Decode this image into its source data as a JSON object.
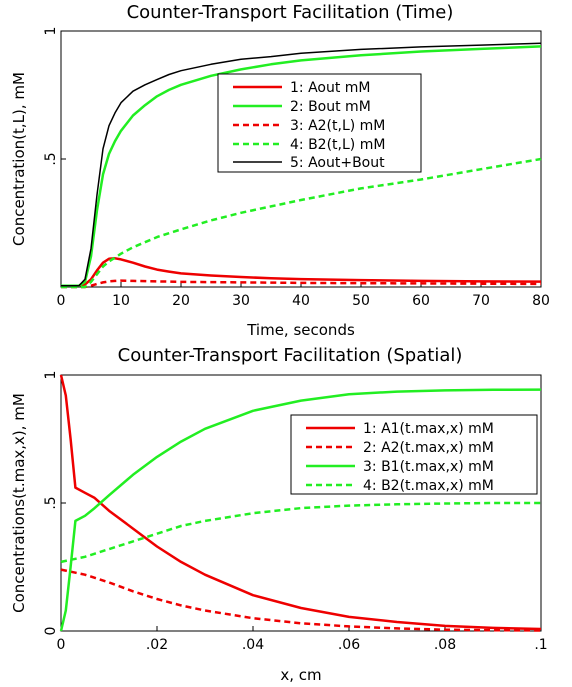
{
  "colors": {
    "red": "#ee0000",
    "green": "#22ee22",
    "black": "#000000"
  },
  "chart_data": [
    {
      "type": "line",
      "title": "Counter-Transport Facilitation (Time)",
      "xlabel": "Time, seconds",
      "ylabel": "Concentration(t,L), mM",
      "xlim": [
        0,
        80
      ],
      "ylim": [
        0,
        1
      ],
      "xticks": [
        {
          "v": 0,
          "label": "0"
        },
        {
          "v": 10,
          "label": "10"
        },
        {
          "v": 20,
          "label": "20"
        },
        {
          "v": 30,
          "label": "30"
        },
        {
          "v": 40,
          "label": "40"
        },
        {
          "v": 50,
          "label": "50"
        },
        {
          "v": 60,
          "label": "60"
        },
        {
          "v": 70,
          "label": "70"
        },
        {
          "v": 80,
          "label": "80"
        }
      ],
      "yticks": [
        {
          "v": 0.5,
          "label": ".5"
        },
        {
          "v": 1,
          "label": "1"
        }
      ],
      "legend_position": "top-right",
      "series": [
        {
          "name": "1: Aout mM",
          "color": "#ee0000",
          "dash": false,
          "x": [
            0,
            3,
            4,
            5,
            6,
            7,
            8,
            9,
            10,
            12,
            14,
            16,
            18,
            20,
            25,
            30,
            35,
            40,
            50,
            60,
            70,
            80
          ],
          "y": [
            0.005,
            0.005,
            0.01,
            0.03,
            0.065,
            0.095,
            0.11,
            0.112,
            0.108,
            0.095,
            0.08,
            0.068,
            0.06,
            0.053,
            0.045,
            0.039,
            0.034,
            0.031,
            0.027,
            0.024,
            0.022,
            0.021
          ]
        },
        {
          "name": "2: Bout mM",
          "color": "#22ee22",
          "dash": false,
          "x": [
            0,
            3,
            4,
            5,
            6,
            7,
            8,
            9,
            10,
            12,
            14,
            16,
            18,
            20,
            25,
            30,
            35,
            40,
            50,
            60,
            70,
            80
          ],
          "y": [
            0.005,
            0.005,
            0.02,
            0.12,
            0.3,
            0.44,
            0.52,
            0.57,
            0.61,
            0.67,
            0.71,
            0.745,
            0.77,
            0.79,
            0.825,
            0.85,
            0.87,
            0.885,
            0.905,
            0.92,
            0.93,
            0.94
          ]
        },
        {
          "name": "3: A2(t,L) mM",
          "color": "#ee0000",
          "dash": true,
          "x": [
            0,
            4,
            5,
            6,
            7,
            8,
            9,
            10,
            12,
            14,
            16,
            18,
            20,
            25,
            30,
            35,
            40,
            50,
            60,
            70,
            80
          ],
          "y": [
            0,
            0,
            0.005,
            0.012,
            0.018,
            0.022,
            0.024,
            0.025,
            0.024,
            0.023,
            0.022,
            0.021,
            0.02,
            0.019,
            0.018,
            0.017,
            0.016,
            0.015,
            0.014,
            0.013,
            0.012
          ]
        },
        {
          "name": "4: B2(t,L) mM",
          "color": "#22ee22",
          "dash": true,
          "x": [
            0,
            4,
            5,
            6,
            7,
            8,
            9,
            10,
            12,
            14,
            16,
            18,
            20,
            25,
            30,
            35,
            40,
            50,
            60,
            70,
            80
          ],
          "y": [
            0,
            0,
            0.02,
            0.05,
            0.08,
            0.1,
            0.115,
            0.13,
            0.155,
            0.175,
            0.195,
            0.21,
            0.225,
            0.26,
            0.29,
            0.315,
            0.34,
            0.385,
            0.42,
            0.46,
            0.5
          ]
        },
        {
          "name": "5: Aout+Bout",
          "color": "#000000",
          "dash": false,
          "x": [
            0,
            3,
            4,
            5,
            6,
            7,
            8,
            9,
            10,
            12,
            14,
            16,
            18,
            20,
            25,
            30,
            35,
            40,
            50,
            60,
            70,
            80
          ],
          "y": [
            0.005,
            0.005,
            0.03,
            0.15,
            0.36,
            0.54,
            0.63,
            0.68,
            0.72,
            0.765,
            0.79,
            0.81,
            0.83,
            0.845,
            0.87,
            0.89,
            0.9,
            0.913,
            0.928,
            0.938,
            0.945,
            0.952
          ]
        }
      ]
    },
    {
      "type": "line",
      "title": "Counter-Transport Facilitation (Spatial)",
      "xlabel": "x, cm",
      "ylabel": "Concentrations(t.max,x), mM",
      "xlim": [
        0,
        0.1
      ],
      "ylim": [
        0,
        1
      ],
      "xticks": [
        {
          "v": 0,
          "label": "0"
        },
        {
          "v": 0.02,
          "label": ".02"
        },
        {
          "v": 0.04,
          "label": ".04"
        },
        {
          "v": 0.06,
          "label": ".06"
        },
        {
          "v": 0.08,
          "label": ".08"
        },
        {
          "v": 0.1,
          "label": ".1"
        }
      ],
      "yticks": [
        {
          "v": 0,
          "label": "0"
        },
        {
          "v": 0.5,
          "label": ".5"
        },
        {
          "v": 1,
          "label": "1"
        }
      ],
      "legend_position": "top-right",
      "series": [
        {
          "name": "1: A1(t.max,x) mM",
          "color": "#ee0000",
          "dash": false,
          "x": [
            0,
            0.001,
            0.002,
            0.003,
            0.005,
            0.007,
            0.01,
            0.015,
            0.02,
            0.025,
            0.03,
            0.04,
            0.05,
            0.06,
            0.07,
            0.08,
            0.09,
            0.1
          ],
          "y": [
            1,
            0.92,
            0.75,
            0.56,
            0.54,
            0.52,
            0.47,
            0.4,
            0.33,
            0.27,
            0.22,
            0.14,
            0.09,
            0.055,
            0.035,
            0.02,
            0.012,
            0.008
          ]
        },
        {
          "name": "2: A2(t.max,x) mM",
          "color": "#ee0000",
          "dash": true,
          "x": [
            0,
            0.005,
            0.01,
            0.015,
            0.02,
            0.025,
            0.03,
            0.04,
            0.05,
            0.06,
            0.07,
            0.08,
            0.09,
            0.1
          ],
          "y": [
            0.24,
            0.22,
            0.19,
            0.155,
            0.125,
            0.1,
            0.08,
            0.05,
            0.03,
            0.018,
            0.01,
            0.005,
            0.003,
            0.002
          ]
        },
        {
          "name": "3: B1(t.max,x) mM",
          "color": "#22ee22",
          "dash": false,
          "x": [
            0,
            0.001,
            0.002,
            0.003,
            0.005,
            0.007,
            0.01,
            0.015,
            0.02,
            0.025,
            0.03,
            0.04,
            0.05,
            0.06,
            0.07,
            0.08,
            0.09,
            0.1
          ],
          "y": [
            0,
            0.08,
            0.25,
            0.43,
            0.45,
            0.48,
            0.53,
            0.61,
            0.68,
            0.74,
            0.79,
            0.86,
            0.9,
            0.925,
            0.935,
            0.94,
            0.942,
            0.943
          ]
        },
        {
          "name": "4: B2(t.max,x) mM",
          "color": "#22ee22",
          "dash": true,
          "x": [
            0,
            0.005,
            0.01,
            0.015,
            0.02,
            0.025,
            0.03,
            0.04,
            0.05,
            0.06,
            0.07,
            0.08,
            0.09,
            0.1
          ],
          "y": [
            0.27,
            0.29,
            0.32,
            0.35,
            0.38,
            0.41,
            0.43,
            0.46,
            0.48,
            0.49,
            0.495,
            0.498,
            0.5,
            0.5
          ]
        }
      ]
    }
  ]
}
